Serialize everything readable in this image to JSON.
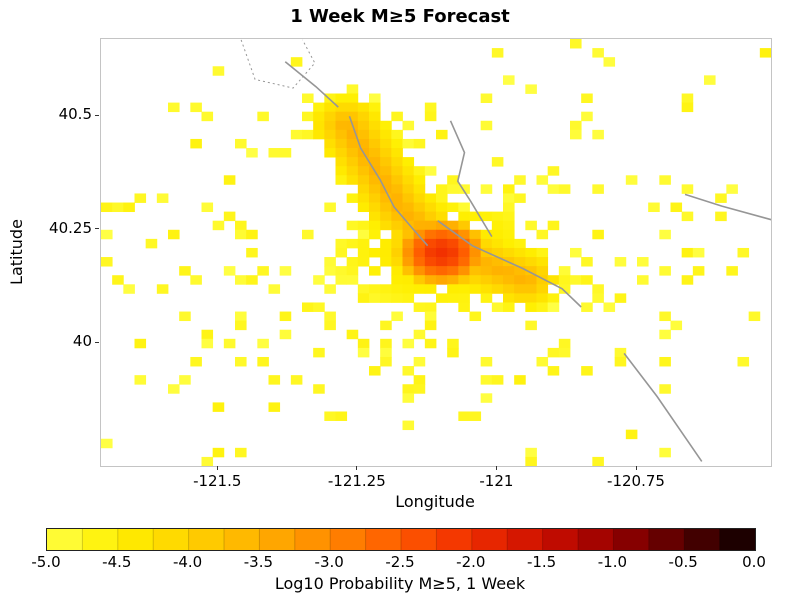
{
  "chart_data": {
    "type": "heatmap",
    "title": "1 Week M≥5 Forecast",
    "xlabel": "Longitude",
    "ylabel": "Latitude",
    "xlim": [
      -121.71,
      -120.51
    ],
    "ylim": [
      39.73,
      40.67
    ],
    "x_ticks": [
      -121.5,
      -121.25,
      -121.0,
      -120.75
    ],
    "x_tick_labels": [
      "-121.5",
      "-121.25",
      "-121",
      "-120.75"
    ],
    "y_ticks": [
      40.5,
      40.25,
      40.0
    ],
    "y_tick_labels": [
      "40.5",
      "40.25",
      "40"
    ],
    "grid": false,
    "cell_size_deg": 0.02,
    "field": {
      "core": {
        "center": [
          -121.1,
          40.2
        ],
        "sigma": [
          0.05,
          0.045
        ],
        "peak": -2.05,
        "falloff": 0.75
      },
      "ridge": {
        "points": [
          [
            -121.27,
            40.48
          ],
          [
            -121.175,
            40.3
          ],
          [
            -121.1,
            40.21
          ],
          [
            -120.95,
            40.14
          ]
        ],
        "peak": -3.5,
        "width": 0.025,
        "exp": 1.2,
        "decay": 0.35
      },
      "halo": {
        "center": [
          -121.1,
          40.2
        ],
        "sigma": [
          0.22,
          0.16
        ],
        "peak": -4.3,
        "falloff": 0.7
      },
      "fill_threshold": -4.35,
      "min": -5.0
    },
    "scatter": {
      "seed": 1337,
      "gaussian_count": 230,
      "gaussian_sigma": [
        0.3,
        0.19
      ],
      "uniform_count": 45,
      "value_range": [
        -5.0,
        -4.6
      ]
    },
    "faults": [
      {
        "style": "solid",
        "points": [
          [
            -121.265,
            40.5
          ],
          [
            -121.245,
            40.43
          ],
          [
            -121.21,
            40.36
          ],
          [
            -121.185,
            40.3
          ],
          [
            -121.15,
            40.25
          ],
          [
            -121.125,
            40.215
          ]
        ]
      },
      {
        "style": "solid",
        "points": [
          [
            -121.084,
            40.49
          ],
          [
            -121.059,
            40.42
          ],
          [
            -121.071,
            40.357
          ],
          [
            -121.048,
            40.313
          ],
          [
            -121.01,
            40.235
          ]
        ]
      },
      {
        "style": "solid",
        "points": [
          [
            -121.107,
            40.27
          ],
          [
            -121.045,
            40.215
          ],
          [
            -120.955,
            40.165
          ],
          [
            -120.884,
            40.12
          ],
          [
            -120.85,
            40.08
          ]
        ]
      },
      {
        "style": "solid",
        "points": [
          [
            -120.773,
            39.978
          ],
          [
            -120.714,
            39.883
          ],
          [
            -120.634,
            39.74
          ]
        ]
      },
      {
        "style": "solid",
        "points": [
          [
            -120.664,
            40.328
          ],
          [
            -120.598,
            40.302
          ],
          [
            -120.509,
            40.272
          ]
        ]
      },
      {
        "style": "solid",
        "points": [
          [
            -121.38,
            40.62
          ],
          [
            -121.325,
            40.565
          ],
          [
            -121.285,
            40.52
          ]
        ]
      },
      {
        "style": "dotted",
        "points": [
          [
            -121.459,
            40.668
          ],
          [
            -121.434,
            40.581
          ],
          [
            -121.366,
            40.562
          ],
          [
            -121.327,
            40.617
          ],
          [
            -121.349,
            40.668
          ]
        ]
      }
    ],
    "fault_color": "#969696",
    "colormap_stops": [
      {
        "v": -5.0,
        "c": "#ffff45"
      },
      {
        "v": -4.5,
        "c": "#ffef00"
      },
      {
        "v": -4.0,
        "c": "#ffd300"
      },
      {
        "v": -3.5,
        "c": "#ffb000"
      },
      {
        "v": -3.0,
        "c": "#ff8800"
      },
      {
        "v": -2.5,
        "c": "#ff5a00"
      },
      {
        "v": -2.0,
        "c": "#f02d00"
      },
      {
        "v": -1.5,
        "c": "#cc0f00"
      },
      {
        "v": -1.0,
        "c": "#960000"
      },
      {
        "v": -0.5,
        "c": "#540000"
      },
      {
        "v": 0.0,
        "c": "#0a0000"
      }
    ],
    "colorbar": {
      "label": "Log10 Probability M≥5, 1 Week",
      "range": [
        -5,
        0
      ],
      "segments": 20,
      "tick_labels": [
        "-5.0",
        "-4.5",
        "-4.0",
        "-3.5",
        "-3.0",
        "-2.5",
        "-2.0",
        "-1.5",
        "-1.0",
        "-0.5",
        "0.0"
      ]
    }
  }
}
